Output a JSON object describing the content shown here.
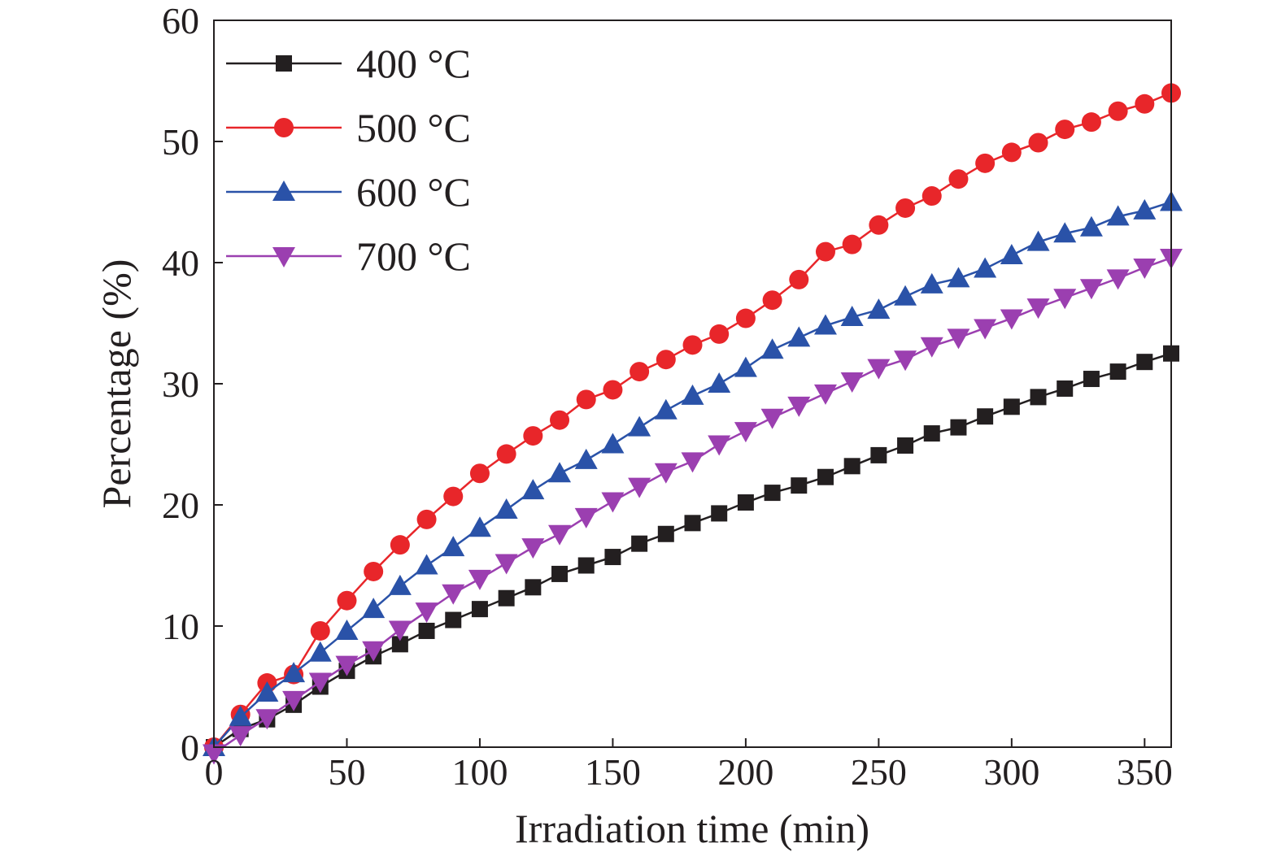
{
  "chart_data": {
    "type": "line",
    "title": "",
    "xlabel": "Irradiation time (min)",
    "ylabel": "Percentage (%)",
    "xlim": [
      0,
      360
    ],
    "ylim": [
      0,
      60
    ],
    "xticks": [
      0,
      50,
      100,
      150,
      200,
      250,
      300,
      350
    ],
    "yticks": [
      0,
      10,
      20,
      30,
      40,
      50,
      60
    ],
    "x_tick_labels": [
      "0",
      "50",
      "100",
      "150",
      "200",
      "250",
      "300",
      "350"
    ],
    "y_tick_labels": [
      "0",
      "10",
      "20",
      "30",
      "40",
      "50",
      "60"
    ],
    "grid": false,
    "legend_position": "top-left",
    "x": [
      0,
      10,
      20,
      30,
      40,
      50,
      60,
      70,
      80,
      90,
      100,
      110,
      120,
      130,
      140,
      150,
      160,
      170,
      180,
      190,
      200,
      210,
      220,
      230,
      240,
      250,
      260,
      270,
      280,
      290,
      300,
      310,
      320,
      330,
      340,
      350,
      360
    ],
    "series": [
      {
        "name": "400 °C",
        "color": "#231f20",
        "marker": "square",
        "values": [
          0,
          1.5,
          2.3,
          3.5,
          5.0,
          6.3,
          7.5,
          8.5,
          9.6,
          10.5,
          11.4,
          12.3,
          13.2,
          14.3,
          15.0,
          15.7,
          16.8,
          17.6,
          18.5,
          19.3,
          20.2,
          21.0,
          21.6,
          22.3,
          23.2,
          24.1,
          24.9,
          25.9,
          26.4,
          27.3,
          28.1,
          28.9,
          29.6,
          30.4,
          31.0,
          31.8,
          32.5
        ]
      },
      {
        "name": "500 °C",
        "color": "#e8262a",
        "marker": "circle",
        "values": [
          0,
          2.7,
          5.3,
          6.0,
          9.6,
          12.1,
          14.5,
          16.7,
          18.8,
          20.7,
          22.6,
          24.2,
          25.7,
          27.0,
          28.7,
          29.5,
          31.0,
          32.0,
          33.2,
          34.1,
          35.4,
          36.9,
          38.6,
          40.9,
          41.5,
          43.1,
          44.5,
          45.5,
          46.9,
          48.2,
          49.1,
          49.9,
          51.0,
          51.6,
          52.5,
          53.1,
          54.0
        ]
      },
      {
        "name": "600 °C",
        "color": "#2a52a8",
        "marker": "triangle-up",
        "values": [
          0,
          2.5,
          4.5,
          6.1,
          7.8,
          9.6,
          11.4,
          13.3,
          15.0,
          16.5,
          18.1,
          19.6,
          21.2,
          22.6,
          23.7,
          25.0,
          26.4,
          27.8,
          29.0,
          30.0,
          31.3,
          32.8,
          33.8,
          34.8,
          35.5,
          36.1,
          37.2,
          38.2,
          38.7,
          39.5,
          40.6,
          41.7,
          42.4,
          42.9,
          43.8,
          44.3,
          45.0
        ]
      },
      {
        "name": "700 °C",
        "color": "#9b3fb0",
        "marker": "triangle-down",
        "values": [
          -0.5,
          1.0,
          2.4,
          3.9,
          5.4,
          6.8,
          8.0,
          9.7,
          11.2,
          12.7,
          13.9,
          15.2,
          16.5,
          17.6,
          19.0,
          20.3,
          21.5,
          22.7,
          23.6,
          25.0,
          26.1,
          27.2,
          28.2,
          29.2,
          30.2,
          31.3,
          32.0,
          33.1,
          33.8,
          34.6,
          35.4,
          36.3,
          37.1,
          37.9,
          38.7,
          39.6,
          40.4
        ]
      }
    ]
  }
}
